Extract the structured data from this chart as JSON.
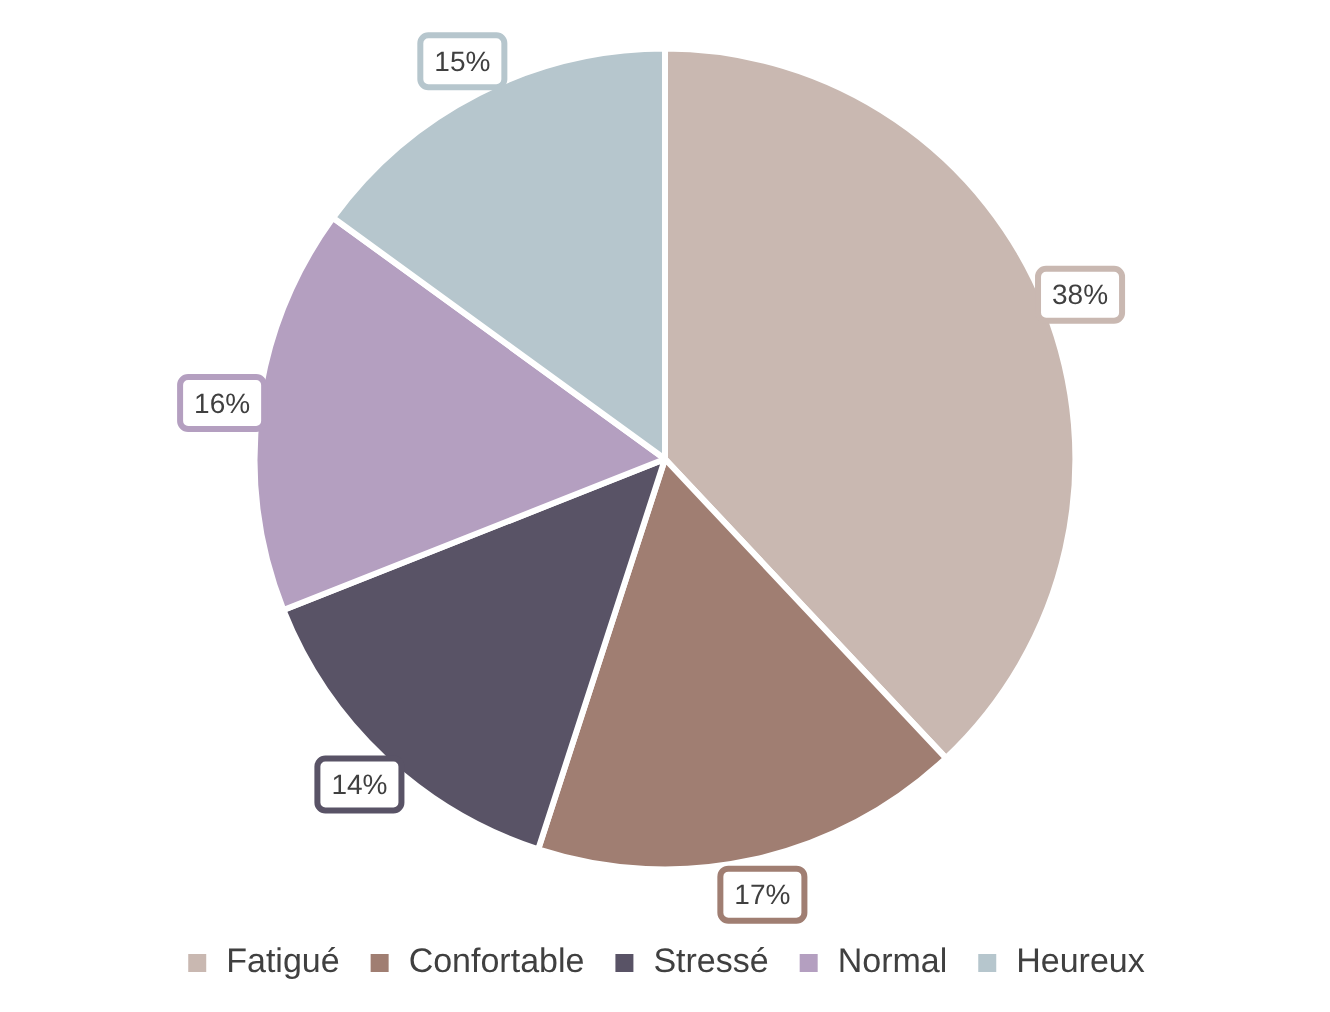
{
  "chart_data": {
    "type": "pie",
    "categories": [
      "Fatigué",
      "Confortable",
      "Stressé",
      "Normal",
      "Heureux"
    ],
    "values": [
      38,
      17,
      14,
      16,
      15
    ],
    "colors": [
      "#c9b8b1",
      "#a07e72",
      "#595366",
      "#b49fc0",
      "#b6c6cd"
    ],
    "value_labels": [
      "38%",
      "17%",
      "14%",
      "16%",
      "15%"
    ],
    "legend": "bottom"
  }
}
